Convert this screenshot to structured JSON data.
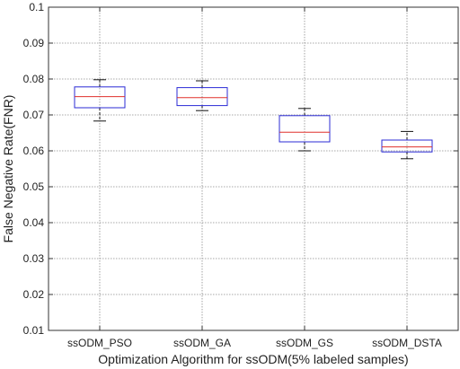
{
  "chart_data": {
    "type": "box",
    "xlabel": "Optimization Algorithm for ssODM(5% labeled samples)",
    "ylabel": "False Negative Rate(FNR)",
    "ylim": [
      0.01,
      0.1
    ],
    "yticks": [
      "0.01",
      "0.02",
      "0.03",
      "0.04",
      "0.05",
      "0.06",
      "0.07",
      "0.08",
      "0.09",
      "0.1"
    ],
    "grid": true,
    "categories": [
      "ssODM_PSO",
      "ssODM_GA",
      "ssODM_GS",
      "ssODM_DSTA"
    ],
    "boxes": [
      {
        "name": "ssODM_PSO",
        "whisker_low": 0.0683,
        "q1": 0.072,
        "median": 0.0751,
        "q3": 0.0778,
        "whisker_high": 0.0798
      },
      {
        "name": "ssODM_GA",
        "whisker_low": 0.0712,
        "q1": 0.0726,
        "median": 0.0748,
        "q3": 0.0776,
        "whisker_high": 0.0795
      },
      {
        "name": "ssODM_GS",
        "whisker_low": 0.06,
        "q1": 0.0625,
        "median": 0.0652,
        "q3": 0.0698,
        "whisker_high": 0.0718
      },
      {
        "name": "ssODM_DSTA",
        "whisker_low": 0.0578,
        "q1": 0.0597,
        "median": 0.0611,
        "q3": 0.063,
        "whisker_high": 0.0654
      }
    ],
    "colors": {
      "box": "#2b2bd6",
      "median": "#e0312b",
      "whisker": "#111111",
      "grid": "#8c8c8c",
      "axis": "#333333"
    }
  }
}
